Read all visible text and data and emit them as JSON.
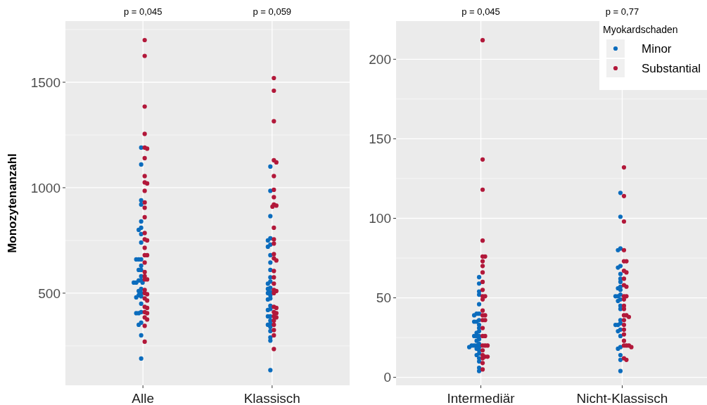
{
  "chart_data": [
    {
      "type": "scatter",
      "categories": [
        "Alle",
        "Klassisch"
      ],
      "ylabel": "Monozytenanzahl",
      "ylim": [
        63,
        1790
      ],
      "yticks": [
        500,
        1000,
        1500
      ],
      "grid": true,
      "marker": "circle",
      "legend": false,
      "annotations": [
        "p = 0,045",
        "p = 0,059"
      ],
      "series": [
        {
          "color": "#0b6cbd",
          "x": [
            "Alle",
            "Alle",
            "Alle",
            "Alle",
            "Alle",
            "Alle",
            "Alle",
            "Alle",
            "Alle",
            "Alle",
            "Alle",
            "Alle",
            "Alle",
            "Alle",
            "Alle",
            "Alle",
            "Alle",
            "Alle",
            "Alle",
            "Alle",
            "Alle",
            "Alle",
            "Alle",
            "Alle",
            "Alle",
            "Alle",
            "Alle",
            "Alle",
            "Alle",
            "Alle",
            "Alle",
            "Alle",
            "Alle",
            "Alle",
            "Alle",
            "Klassisch",
            "Klassisch",
            "Klassisch",
            "Klassisch",
            "Klassisch",
            "Klassisch",
            "Klassisch",
            "Klassisch",
            "Klassisch",
            "Klassisch",
            "Klassisch",
            "Klassisch",
            "Klassisch",
            "Klassisch",
            "Klassisch",
            "Klassisch",
            "Klassisch",
            "Klassisch",
            "Klassisch",
            "Klassisch",
            "Klassisch",
            "Klassisch",
            "Klassisch",
            "Klassisch",
            "Klassisch",
            "Klassisch",
            "Klassisch",
            "Klassisch",
            "Klassisch",
            "Klassisch",
            "Klassisch",
            "Klassisch",
            "Klassisch"
          ],
          "values": [
            1190,
            1110,
            940,
            920,
            840,
            810,
            800,
            780,
            740,
            660,
            660,
            660,
            630,
            610,
            610,
            580,
            560,
            560,
            550,
            550,
            550,
            510,
            490,
            485,
            480,
            450,
            410,
            405,
            405,
            360,
            350,
            300,
            190,
            520,
            500,
            1100,
            985,
            865,
            760,
            750,
            730,
            720,
            680,
            645,
            610,
            575,
            555,
            545,
            525,
            520,
            505,
            500,
            490,
            475,
            470,
            440,
            425,
            420,
            390,
            390,
            370,
            355,
            350,
            340,
            320,
            290,
            275,
            135
          ]
        },
        {
          "color": "#b2183a",
          "x": [
            "Alle",
            "Alle",
            "Alle",
            "Alle",
            "Alle",
            "Alle",
            "Alle",
            "Alle",
            "Alle",
            "Alle",
            "Alle",
            "Alle",
            "Alle",
            "Alle",
            "Alle",
            "Alle",
            "Alle",
            "Alle",
            "Alle",
            "Alle",
            "Alle",
            "Alle",
            "Alle",
            "Alle",
            "Alle",
            "Alle",
            "Alle",
            "Alle",
            "Alle",
            "Alle",
            "Alle",
            "Alle",
            "Alle",
            "Alle",
            "Alle",
            "Alle",
            "Alle",
            "Alle",
            "Klassisch",
            "Klassisch",
            "Klassisch",
            "Klassisch",
            "Klassisch",
            "Klassisch",
            "Klassisch",
            "Klassisch",
            "Klassisch",
            "Klassisch",
            "Klassisch",
            "Klassisch",
            "Klassisch",
            "Klassisch",
            "Klassisch",
            "Klassisch",
            "Klassisch",
            "Klassisch",
            "Klassisch",
            "Klassisch",
            "Klassisch",
            "Klassisch",
            "Klassisch",
            "Klassisch",
            "Klassisch",
            "Klassisch",
            "Klassisch",
            "Klassisch",
            "Klassisch",
            "Klassisch",
            "Klassisch",
            "Klassisch",
            "Klassisch",
            "Klassisch"
          ],
          "values": [
            1700,
            1625,
            1385,
            1255,
            1190,
            1185,
            1140,
            1055,
            1025,
            1020,
            985,
            930,
            905,
            860,
            785,
            755,
            750,
            715,
            680,
            680,
            645,
            600,
            580,
            565,
            565,
            515,
            500,
            495,
            475,
            465,
            435,
            430,
            410,
            405,
            385,
            375,
            345,
            270,
            1520,
            1460,
            1315,
            1130,
            1120,
            1055,
            990,
            955,
            920,
            915,
            910,
            810,
            755,
            735,
            685,
            665,
            655,
            605,
            575,
            545,
            515,
            510,
            500,
            435,
            430,
            410,
            405,
            390,
            385,
            370,
            350,
            325,
            300,
            235
          ]
        }
      ]
    },
    {
      "type": "scatter",
      "categories": [
        "Intermediär",
        "Nicht-Klassisch"
      ],
      "ylim": [
        -5,
        224
      ],
      "yticks": [
        0,
        50,
        100,
        150,
        200
      ],
      "grid": true,
      "marker": "circle",
      "legend": "top right",
      "legend_title": "Myokardschaden",
      "annotations": [
        "p = 0,045",
        "p = 0,77"
      ],
      "series": [
        {
          "name": "Minor",
          "color": "#0b6cbd",
          "x": [
            "Intermediär",
            "Intermediär",
            "Intermediär",
            "Intermediär",
            "Intermediär",
            "Intermediär",
            "Intermediär",
            "Intermediär",
            "Intermediär",
            "Intermediär",
            "Intermediär",
            "Intermediär",
            "Intermediär",
            "Intermediär",
            "Intermediär",
            "Intermediär",
            "Intermediär",
            "Intermediär",
            "Intermediär",
            "Intermediär",
            "Intermediär",
            "Intermediär",
            "Intermediär",
            "Intermediär",
            "Intermediär",
            "Intermediär",
            "Intermediär",
            "Intermediär",
            "Intermediär",
            "Intermediär",
            "Intermediär",
            "Intermediär",
            "Intermediär",
            "Intermediär",
            "Nicht-Klassisch",
            "Nicht-Klassisch",
            "Nicht-Klassisch",
            "Nicht-Klassisch",
            "Nicht-Klassisch",
            "Nicht-Klassisch",
            "Nicht-Klassisch",
            "Nicht-Klassisch",
            "Nicht-Klassisch",
            "Nicht-Klassisch",
            "Nicht-Klassisch",
            "Nicht-Klassisch",
            "Nicht-Klassisch",
            "Nicht-Klassisch",
            "Nicht-Klassisch",
            "Nicht-Klassisch",
            "Nicht-Klassisch",
            "Nicht-Klassisch",
            "Nicht-Klassisch",
            "Nicht-Klassisch",
            "Nicht-Klassisch",
            "Nicht-Klassisch",
            "Nicht-Klassisch",
            "Nicht-Klassisch",
            "Nicht-Klassisch",
            "Nicht-Klassisch",
            "Nicht-Klassisch",
            "Nicht-Klassisch",
            "Nicht-Klassisch",
            "Nicht-Klassisch",
            "Nicht-Klassisch"
          ],
          "values": [
            63,
            59,
            54,
            52,
            46,
            40,
            40,
            39,
            36,
            35,
            35,
            33,
            29,
            28,
            26,
            26,
            26,
            24,
            23,
            20,
            20,
            20,
            19,
            19,
            18,
            17,
            15,
            14,
            12,
            10,
            6,
            4,
            21,
            31,
            116,
            101,
            81,
            80,
            70,
            69,
            65,
            62,
            60,
            57,
            56,
            55,
            52,
            51,
            51,
            49,
            48,
            45,
            43,
            36,
            34,
            33,
            33,
            30,
            29,
            26,
            19,
            18,
            14,
            11,
            4
          ]
        },
        {
          "name": "Substantial",
          "color": "#b2183a",
          "x": [
            "Intermediär",
            "Intermediär",
            "Intermediär",
            "Intermediär",
            "Intermediär",
            "Intermediär",
            "Intermediär",
            "Intermediär",
            "Intermediär",
            "Intermediär",
            "Intermediär",
            "Intermediär",
            "Intermediär",
            "Intermediär",
            "Intermediär",
            "Intermediär",
            "Intermediär",
            "Intermediär",
            "Intermediär",
            "Intermediär",
            "Intermediär",
            "Intermediär",
            "Intermediär",
            "Intermediär",
            "Intermediär",
            "Intermediär",
            "Intermediär",
            "Intermediär",
            "Intermediär",
            "Intermediär",
            "Intermediär",
            "Intermediär",
            "Nicht-Klassisch",
            "Nicht-Klassisch",
            "Nicht-Klassisch",
            "Nicht-Klassisch",
            "Nicht-Klassisch",
            "Nicht-Klassisch",
            "Nicht-Klassisch",
            "Nicht-Klassisch",
            "Nicht-Klassisch",
            "Nicht-Klassisch",
            "Nicht-Klassisch",
            "Nicht-Klassisch",
            "Nicht-Klassisch",
            "Nicht-Klassisch",
            "Nicht-Klassisch",
            "Nicht-Klassisch",
            "Nicht-Klassisch",
            "Nicht-Klassisch",
            "Nicht-Klassisch",
            "Nicht-Klassisch",
            "Nicht-Klassisch",
            "Nicht-Klassisch",
            "Nicht-Klassisch",
            "Nicht-Klassisch",
            "Nicht-Klassisch",
            "Nicht-Klassisch",
            "Nicht-Klassisch",
            "Nicht-Klassisch",
            "Nicht-Klassisch",
            "Nicht-Klassisch"
          ],
          "values": [
            212,
            137,
            118,
            86,
            76,
            76,
            73,
            70,
            66,
            60,
            55,
            51,
            51,
            49,
            42,
            39,
            39,
            36,
            36,
            31,
            26,
            26,
            20,
            20,
            20,
            17,
            14,
            13,
            13,
            12,
            9,
            5,
            132,
            114,
            98,
            80,
            73,
            73,
            67,
            66,
            62,
            58,
            57,
            51,
            51,
            49,
            45,
            43,
            39,
            39,
            38,
            36,
            33,
            30,
            27,
            23,
            20,
            20,
            20,
            19,
            12,
            11
          ]
        }
      ]
    }
  ]
}
